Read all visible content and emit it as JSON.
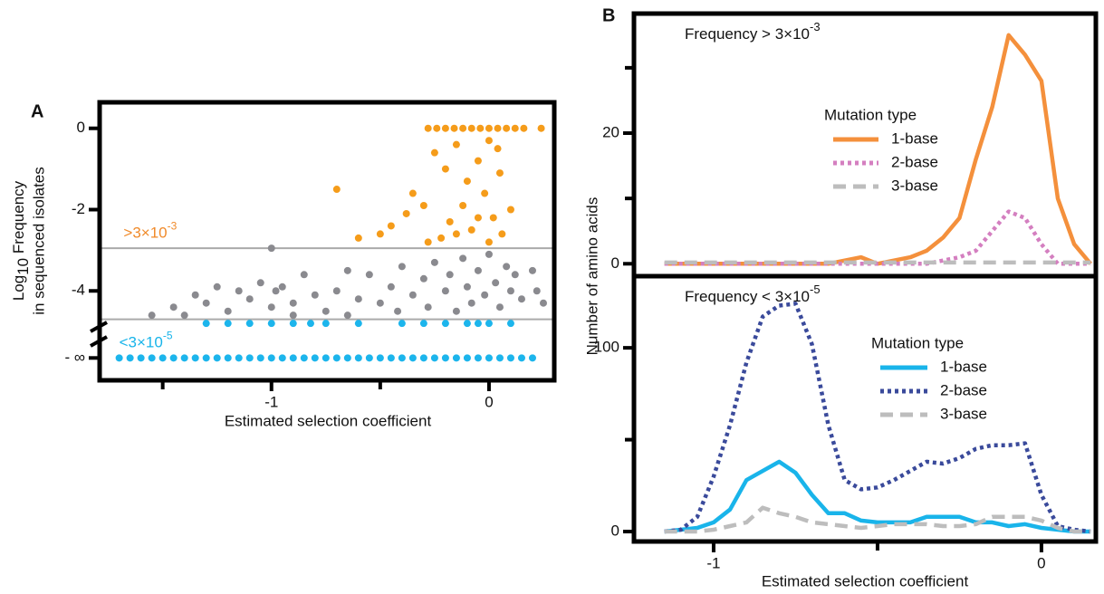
{
  "chart_data": [
    {
      "type": "scatter",
      "panel_label": "A",
      "xlabel": "Estimated selection coefficient",
      "ylabel": {
        "base": "Log",
        "sub": "10",
        "rest": " Frequency",
        "line2": "in sequenced isolates"
      },
      "xlim": [
        -1.79,
        0.3
      ],
      "ylim": [
        -6.2,
        0.64
      ],
      "xticks": [
        -1,
        0
      ],
      "xminor_ticks": [
        -1.5,
        -0.5
      ],
      "yticks": [
        0,
        -2,
        -4,
        {
          "value": -5.65,
          "label": "- ∞"
        }
      ],
      "thresholds": [
        -2.95,
        -4.7
      ],
      "threshold_color": "#aaaaaa",
      "annotations": [
        {
          "text": ">3×10",
          "exponent": "-3",
          "x": -1.68,
          "y": -2.6,
          "color": "#f08a2a"
        },
        {
          "text": "<3×10",
          "exponent": "-5",
          "x": -1.7,
          "y": -5.3,
          "color": "#18b4ea"
        }
      ],
      "series": [
        {
          "color": "#f59c1a",
          "x": [
            -0.28,
            -0.24,
            -0.2,
            -0.16,
            -0.12,
            -0.08,
            -0.04,
            0,
            0.04,
            0.08,
            0.12,
            0.16,
            0.24,
            -0.7,
            -0.25,
            -0.2,
            -0.15,
            -0.1,
            -0.05,
            0,
            0.05,
            -0.12,
            -0.02,
            0.02,
            -0.08,
            -0.18,
            -0.3,
            -0.38,
            -0.45,
            -0.5,
            -0.22,
            0.06,
            0.1,
            -0.28,
            0,
            -0.35,
            -0.05,
            0.04,
            -0.6,
            -0.15
          ],
          "values": [
            0,
            0,
            0,
            0,
            0,
            0,
            0,
            0,
            0,
            0,
            0,
            0,
            0,
            -1.5,
            -0.6,
            -1.0,
            -0.4,
            -1.3,
            -0.8,
            -0.3,
            -1.1,
            -1.9,
            -1.6,
            -2.2,
            -2.5,
            -2.3,
            -1.9,
            -2.1,
            -2.4,
            -2.6,
            -2.7,
            -2.6,
            -2.0,
            -2.8,
            -2.8,
            -1.6,
            -2.2,
            -0.5,
            -2.7,
            -2.6
          ]
        },
        {
          "color": "#8a8a8f",
          "x": [
            -1.55,
            -1.45,
            -1.4,
            -1.35,
            -1.3,
            -1.25,
            -1.2,
            -1.15,
            -1.1,
            -1.05,
            -1.0,
            -0.98,
            -0.95,
            -0.9,
            -0.85,
            -0.8,
            -0.75,
            -0.7,
            -0.65,
            -0.6,
            -0.55,
            -0.5,
            -0.45,
            -0.42,
            -0.4,
            -0.35,
            -0.3,
            -0.28,
            -0.25,
            -0.2,
            -0.18,
            -0.15,
            -0.12,
            -0.1,
            -0.08,
            -0.05,
            -0.02,
            0,
            0.03,
            0.05,
            0.08,
            0.1,
            0.12,
            0.15,
            0.2,
            0.22,
            0.25,
            -1.0,
            -0.65,
            -0.9
          ],
          "values": [
            -4.6,
            -4.4,
            -4.6,
            -4.1,
            -4.3,
            -3.9,
            -4.5,
            -4.0,
            -4.2,
            -3.8,
            -4.4,
            -4.0,
            -3.9,
            -4.3,
            -3.6,
            -4.1,
            -4.5,
            -4.0,
            -4.6,
            -4.2,
            -3.6,
            -4.3,
            -3.9,
            -4.5,
            -3.4,
            -4.1,
            -3.7,
            -4.4,
            -3.3,
            -4.0,
            -3.6,
            -4.5,
            -3.2,
            -3.9,
            -4.3,
            -3.5,
            -4.1,
            -3.1,
            -3.8,
            -4.4,
            -3.4,
            -4.0,
            -3.6,
            -4.2,
            -3.5,
            -4.0,
            -4.3,
            -2.95,
            -3.5,
            -4.6
          ]
        },
        {
          "color": "#1cb5ec",
          "x": [
            -1.3,
            -1.2,
            -1.1,
            -1.0,
            -0.9,
            -0.82,
            -0.75,
            -0.6,
            -0.4,
            -0.3,
            -0.2,
            -0.1,
            -0.05,
            0,
            0.1,
            -1.7,
            -1.65,
            -1.6,
            -1.55,
            -1.5,
            -1.45,
            -1.4,
            -1.35,
            -1.3,
            -1.25,
            -1.2,
            -1.15,
            -1.1,
            -1.05,
            -1.0,
            -0.95,
            -0.9,
            -0.85,
            -0.8,
            -0.75,
            -0.7,
            -0.65,
            -0.6,
            -0.55,
            -0.5,
            -0.45,
            -0.4,
            -0.35,
            -0.3,
            -0.25,
            -0.2,
            -0.15,
            -0.1,
            -0.05,
            0,
            0.05,
            0.1,
            0.15,
            0.2
          ],
          "values": [
            -4.8,
            -4.8,
            -4.8,
            -4.8,
            -4.8,
            -4.8,
            -4.8,
            -4.8,
            -4.8,
            -4.8,
            -4.8,
            -4.8,
            -4.8,
            -4.8,
            -4.8,
            -5.65,
            -5.65,
            -5.65,
            -5.65,
            -5.65,
            -5.65,
            -5.65,
            -5.65,
            -5.65,
            -5.65,
            -5.65,
            -5.65,
            -5.65,
            -5.65,
            -5.65,
            -5.65,
            -5.65,
            -5.65,
            -5.65,
            -5.65,
            -5.65,
            -5.65,
            -5.65,
            -5.65,
            -5.65,
            -5.65,
            -5.65,
            -5.65,
            -5.65,
            -5.65,
            -5.65,
            -5.65,
            -5.65,
            -5.65,
            -5.65,
            -5.65,
            -5.65,
            -5.65,
            -5.65
          ]
        }
      ]
    },
    {
      "type": "line",
      "panel_label": "B",
      "title": "Frequency > 3×10",
      "title_exponent": "-3",
      "ylabel": "Number of amino acids",
      "xlim": [
        -1.243,
        0.166
      ],
      "ylim": [
        -1.9,
        38.3
      ],
      "yticks": [
        0,
        20
      ],
      "yminor_ticks": [
        10,
        30
      ],
      "legend_title": "Mutation type",
      "x": [
        -1.15,
        -1.1,
        -1.05,
        -1.0,
        -0.95,
        -0.9,
        -0.85,
        -0.8,
        -0.75,
        -0.7,
        -0.65,
        -0.6,
        -0.55,
        -0.5,
        -0.45,
        -0.4,
        -0.35,
        -0.3,
        -0.25,
        -0.2,
        -0.15,
        -0.1,
        -0.05,
        0,
        0.05,
        0.1,
        0.15
      ],
      "series": [
        {
          "name": "1-base",
          "color": "#f4903c",
          "dash": "solid",
          "values": [
            0,
            0,
            0,
            0,
            0,
            0,
            0,
            0,
            0,
            0,
            0,
            0.5,
            1,
            0,
            0.5,
            1,
            2,
            4,
            7,
            16,
            24,
            35,
            32,
            28,
            10,
            3,
            0
          ]
        },
        {
          "name": "2-base",
          "color": "#d47fc0",
          "dash": "dotted",
          "values": [
            0,
            0,
            0,
            0,
            0,
            0,
            0,
            0,
            0,
            0,
            0,
            0,
            0,
            0,
            0,
            0,
            0,
            0.5,
            1,
            2,
            5,
            8,
            7,
            3,
            0,
            0,
            0
          ]
        },
        {
          "name": "3-base",
          "color": "#bdbdbd",
          "dash": "dashed",
          "values": [
            0.2,
            0.2,
            0.2,
            0.2,
            0.2,
            0.2,
            0.2,
            0.2,
            0.2,
            0.2,
            0.2,
            0.2,
            0.2,
            0.2,
            0.2,
            0.2,
            0.2,
            0.2,
            0.2,
            0.2,
            0.2,
            0.2,
            0.2,
            0.2,
            0.2,
            0.2,
            0.2
          ]
        }
      ]
    },
    {
      "type": "line",
      "title": "Frequency < 3×10",
      "title_exponent": "-5",
      "xlabel": "Estimated selection coefficient",
      "xlim": [
        -1.243,
        0.166
      ],
      "ylim": [
        -5.4,
        139
      ],
      "xticks": [
        -1,
        0
      ],
      "xminor_ticks": [
        -0.5
      ],
      "yticks": [
        0,
        100
      ],
      "yminor_ticks": [
        50
      ],
      "legend_title": "Mutation type",
      "x": [
        -1.15,
        -1.1,
        -1.05,
        -1.0,
        -0.95,
        -0.9,
        -0.85,
        -0.8,
        -0.75,
        -0.7,
        -0.65,
        -0.6,
        -0.55,
        -0.5,
        -0.45,
        -0.4,
        -0.35,
        -0.3,
        -0.25,
        -0.2,
        -0.15,
        -0.1,
        -0.05,
        0,
        0.05,
        0.1,
        0.15
      ],
      "series": [
        {
          "name": "1-base",
          "color": "#19b4ea",
          "dash": "solid",
          "values": [
            0,
            1,
            2,
            5,
            12,
            28,
            33,
            38,
            32,
            20,
            10,
            10,
            6,
            5,
            5,
            5,
            8,
            8,
            8,
            5,
            5,
            3,
            4,
            2,
            1,
            0,
            0
          ]
        },
        {
          "name": "2-base",
          "color": "#3a4a9b",
          "dash": "dotted",
          "values": [
            0,
            1,
            8,
            30,
            58,
            92,
            117,
            123,
            124,
            102,
            58,
            28,
            23,
            24,
            28,
            33,
            38,
            37,
            40,
            45,
            47,
            47,
            48,
            20,
            3,
            1,
            0
          ]
        },
        {
          "name": "3-base",
          "color": "#bdbdbd",
          "dash": "dashed",
          "values": [
            0,
            0,
            0,
            1,
            3,
            5,
            13,
            10,
            8,
            5,
            4,
            3,
            2,
            3,
            4,
            4,
            4,
            3,
            3,
            4,
            8,
            8,
            8,
            6,
            2,
            0,
            0
          ]
        }
      ]
    }
  ]
}
